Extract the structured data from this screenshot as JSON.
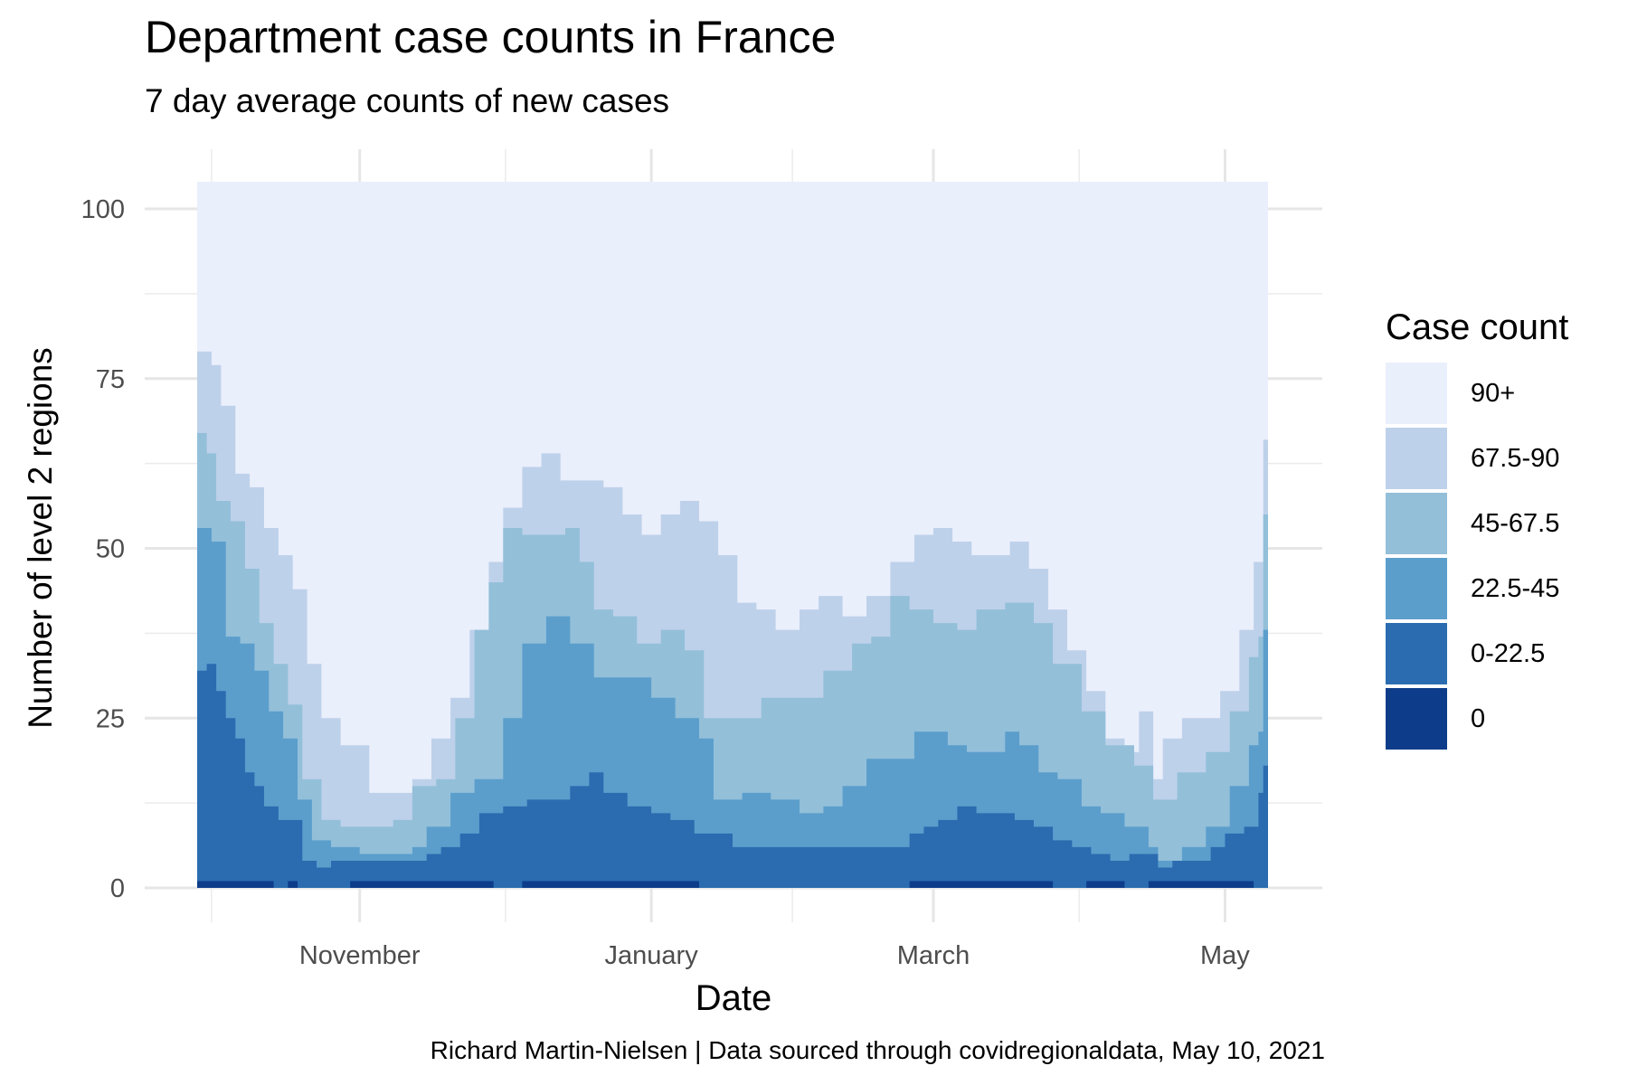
{
  "chart_data": {
    "type": "area",
    "title": "Department case counts in France",
    "subtitle": "7 day average counts of new cases",
    "xlabel": "Date",
    "ylabel": "Number of level 2 regions",
    "caption": "Richard Martin-Nielsen | Data sourced through covidregionaldata, May 10, 2021",
    "x_range": [
      "2020-09-28",
      "2021-05-10"
    ],
    "x_ticks": [
      {
        "date": "2020-11-01",
        "label": "November"
      },
      {
        "date": "2021-01-01",
        "label": "January"
      },
      {
        "date": "2021-03-01",
        "label": "March"
      },
      {
        "date": "2021-05-01",
        "label": "May"
      }
    ],
    "ylim": [
      0,
      104
    ],
    "y_ticks": [
      0,
      25,
      50,
      75,
      100
    ],
    "grid": true,
    "stacked": true,
    "total": 104,
    "legend": {
      "title": "Case count",
      "placement": "right",
      "entries": [
        {
          "label": "90+",
          "color": "#eaeffc"
        },
        {
          "label": "67.5-90",
          "color": "#bed1ea"
        },
        {
          "label": "45-67.5",
          "color": "#93bfd9"
        },
        {
          "label": "22.5-45",
          "color": "#5b9ecc"
        },
        {
          "label": "0-22.5",
          "color": "#2b6cb0"
        },
        {
          "label": "0",
          "color": "#0d3d8a"
        }
      ]
    },
    "cumulative_boundaries": [
      {
        "upper_of": "0",
        "points": [
          [
            "2020-09-28",
            1
          ],
          [
            "2020-10-12",
            1
          ],
          [
            "2020-10-14",
            0
          ],
          [
            "2020-10-17",
            1
          ],
          [
            "2020-10-19",
            0
          ],
          [
            "2020-10-28",
            0
          ],
          [
            "2020-10-30",
            1
          ],
          [
            "2020-11-26",
            1
          ],
          [
            "2020-11-29",
            0
          ],
          [
            "2020-12-05",
            1
          ],
          [
            "2021-01-08",
            1
          ],
          [
            "2021-01-11",
            0
          ],
          [
            "2021-02-22",
            0
          ],
          [
            "2021-02-24",
            1
          ],
          [
            "2021-03-23",
            1
          ],
          [
            "2021-03-26",
            0
          ],
          [
            "2021-04-02",
            1
          ],
          [
            "2021-04-08",
            1
          ],
          [
            "2021-04-10",
            0
          ],
          [
            "2021-04-13",
            0
          ],
          [
            "2021-04-15",
            1
          ],
          [
            "2021-05-05",
            1
          ],
          [
            "2021-05-07",
            0
          ],
          [
            "2021-05-10",
            1
          ]
        ]
      },
      {
        "upper_of": "0-22.5",
        "points": [
          [
            "2020-09-28",
            32
          ],
          [
            "2020-09-30",
            33
          ],
          [
            "2020-10-02",
            29
          ],
          [
            "2020-10-04",
            25
          ],
          [
            "2020-10-06",
            22
          ],
          [
            "2020-10-08",
            17
          ],
          [
            "2020-10-10",
            15
          ],
          [
            "2020-10-12",
            12
          ],
          [
            "2020-10-15",
            10
          ],
          [
            "2020-10-18",
            10
          ],
          [
            "2020-10-20",
            4
          ],
          [
            "2020-10-23",
            3
          ],
          [
            "2020-10-26",
            4
          ],
          [
            "2020-11-03",
            4
          ],
          [
            "2020-11-08",
            4
          ],
          [
            "2020-11-11",
            4
          ],
          [
            "2020-11-15",
            5
          ],
          [
            "2020-11-18",
            6
          ],
          [
            "2020-11-22",
            8
          ],
          [
            "2020-11-26",
            11
          ],
          [
            "2020-12-01",
            12
          ],
          [
            "2020-12-06",
            13
          ],
          [
            "2020-12-10",
            13
          ],
          [
            "2020-12-15",
            15
          ],
          [
            "2020-12-19",
            17
          ],
          [
            "2020-12-22",
            14
          ],
          [
            "2020-12-27",
            12
          ],
          [
            "2021-01-01",
            11
          ],
          [
            "2021-01-05",
            10
          ],
          [
            "2021-01-10",
            8
          ],
          [
            "2021-01-14",
            8
          ],
          [
            "2021-01-18",
            6
          ],
          [
            "2021-01-24",
            6
          ],
          [
            "2021-01-30",
            6
          ],
          [
            "2021-02-05",
            6
          ],
          [
            "2021-02-10",
            6
          ],
          [
            "2021-02-15",
            6
          ],
          [
            "2021-02-20",
            6
          ],
          [
            "2021-02-24",
            8
          ],
          [
            "2021-02-27",
            9
          ],
          [
            "2021-03-02",
            10
          ],
          [
            "2021-03-06",
            12
          ],
          [
            "2021-03-10",
            11
          ],
          [
            "2021-03-14",
            11
          ],
          [
            "2021-03-18",
            10
          ],
          [
            "2021-03-22",
            9
          ],
          [
            "2021-03-26",
            7
          ],
          [
            "2021-03-30",
            6
          ],
          [
            "2021-04-03",
            5
          ],
          [
            "2021-04-07",
            4
          ],
          [
            "2021-04-11",
            5
          ],
          [
            "2021-04-15",
            5
          ],
          [
            "2021-04-17",
            3
          ],
          [
            "2021-04-20",
            4
          ],
          [
            "2021-04-25",
            4
          ],
          [
            "2021-04-28",
            6
          ],
          [
            "2021-05-01",
            8
          ],
          [
            "2021-05-05",
            9
          ],
          [
            "2021-05-08",
            14
          ],
          [
            "2021-05-09",
            18
          ],
          [
            "2021-05-10",
            29
          ]
        ]
      },
      {
        "upper_of": "22.5-45",
        "points": [
          [
            "2020-09-28",
            53
          ],
          [
            "2020-10-01",
            51
          ],
          [
            "2020-10-04",
            37
          ],
          [
            "2020-10-07",
            36
          ],
          [
            "2020-10-10",
            32
          ],
          [
            "2020-10-13",
            26
          ],
          [
            "2020-10-16",
            22
          ],
          [
            "2020-10-19",
            13
          ],
          [
            "2020-10-22",
            7
          ],
          [
            "2020-10-26",
            6
          ],
          [
            "2020-11-01",
            5
          ],
          [
            "2020-11-08",
            5
          ],
          [
            "2020-11-12",
            6
          ],
          [
            "2020-11-15",
            9
          ],
          [
            "2020-11-20",
            14
          ],
          [
            "2020-11-25",
            16
          ],
          [
            "2020-12-01",
            25
          ],
          [
            "2020-12-05",
            36
          ],
          [
            "2020-12-10",
            40
          ],
          [
            "2020-12-15",
            36
          ],
          [
            "2020-12-20",
            31
          ],
          [
            "2020-12-26",
            31
          ],
          [
            "2021-01-01",
            28
          ],
          [
            "2021-01-06",
            25
          ],
          [
            "2021-01-11",
            22
          ],
          [
            "2021-01-14",
            13
          ],
          [
            "2021-01-20",
            14
          ],
          [
            "2021-01-26",
            13
          ],
          [
            "2021-02-01",
            11
          ],
          [
            "2021-02-06",
            12
          ],
          [
            "2021-02-10",
            15
          ],
          [
            "2021-02-15",
            19
          ],
          [
            "2021-02-20",
            19
          ],
          [
            "2021-02-25",
            23
          ],
          [
            "2021-03-01",
            23
          ],
          [
            "2021-03-04",
            21
          ],
          [
            "2021-03-08",
            20
          ],
          [
            "2021-03-12",
            20
          ],
          [
            "2021-03-16",
            23
          ],
          [
            "2021-03-19",
            21
          ],
          [
            "2021-03-23",
            17
          ],
          [
            "2021-03-27",
            16
          ],
          [
            "2021-04-01",
            12
          ],
          [
            "2021-04-05",
            11
          ],
          [
            "2021-04-10",
            9
          ],
          [
            "2021-04-15",
            6
          ],
          [
            "2021-04-17",
            4
          ],
          [
            "2021-04-22",
            6
          ],
          [
            "2021-04-27",
            9
          ],
          [
            "2021-05-02",
            15
          ],
          [
            "2021-05-06",
            21
          ],
          [
            "2021-05-08",
            23
          ],
          [
            "2021-05-09",
            38
          ],
          [
            "2021-05-10",
            55
          ]
        ]
      },
      {
        "upper_of": "45-67.5",
        "points": [
          [
            "2020-09-28",
            67
          ],
          [
            "2020-09-30",
            64
          ],
          [
            "2020-10-02",
            57
          ],
          [
            "2020-10-05",
            54
          ],
          [
            "2020-10-08",
            47
          ],
          [
            "2020-10-11",
            39
          ],
          [
            "2020-10-14",
            33
          ],
          [
            "2020-10-17",
            27
          ],
          [
            "2020-10-20",
            16
          ],
          [
            "2020-10-24",
            10
          ],
          [
            "2020-10-28",
            9
          ],
          [
            "2020-11-03",
            9
          ],
          [
            "2020-11-08",
            10
          ],
          [
            "2020-11-12",
            15
          ],
          [
            "2020-11-17",
            16
          ],
          [
            "2020-11-21",
            25
          ],
          [
            "2020-11-25",
            38
          ],
          [
            "2020-11-28",
            45
          ],
          [
            "2020-12-01",
            53
          ],
          [
            "2020-12-05",
            52
          ],
          [
            "2020-12-10",
            52
          ],
          [
            "2020-12-14",
            53
          ],
          [
            "2020-12-17",
            48
          ],
          [
            "2020-12-20",
            41
          ],
          [
            "2020-12-24",
            40
          ],
          [
            "2020-12-29",
            36
          ],
          [
            "2021-01-03",
            38
          ],
          [
            "2021-01-08",
            35
          ],
          [
            "2021-01-12",
            25
          ],
          [
            "2021-01-18",
            25
          ],
          [
            "2021-01-24",
            28
          ],
          [
            "2021-01-30",
            28
          ],
          [
            "2021-02-06",
            32
          ],
          [
            "2021-02-12",
            36
          ],
          [
            "2021-02-16",
            37
          ],
          [
            "2021-02-20",
            43
          ],
          [
            "2021-02-24",
            41
          ],
          [
            "2021-03-01",
            39
          ],
          [
            "2021-03-06",
            38
          ],
          [
            "2021-03-10",
            41
          ],
          [
            "2021-03-16",
            42
          ],
          [
            "2021-03-22",
            39
          ],
          [
            "2021-03-26",
            33
          ],
          [
            "2021-04-01",
            26
          ],
          [
            "2021-04-06",
            21
          ],
          [
            "2021-04-12",
            18
          ],
          [
            "2021-04-16",
            13
          ],
          [
            "2021-04-21",
            17
          ],
          [
            "2021-04-27",
            20
          ],
          [
            "2021-05-02",
            26
          ],
          [
            "2021-05-06",
            34
          ],
          [
            "2021-05-08",
            37
          ],
          [
            "2021-05-09",
            55
          ],
          [
            "2021-05-10",
            67
          ]
        ]
      },
      {
        "upper_of": "67.5-90",
        "points": [
          [
            "2020-09-28",
            79
          ],
          [
            "2020-10-01",
            77
          ],
          [
            "2020-10-03",
            71
          ],
          [
            "2020-10-06",
            61
          ],
          [
            "2020-10-09",
            59
          ],
          [
            "2020-10-12",
            53
          ],
          [
            "2020-10-15",
            49
          ],
          [
            "2020-10-18",
            44
          ],
          [
            "2020-10-21",
            33
          ],
          [
            "2020-10-24",
            25
          ],
          [
            "2020-10-28",
            21
          ],
          [
            "2020-11-03",
            14
          ],
          [
            "2020-11-08",
            14
          ],
          [
            "2020-11-12",
            16
          ],
          [
            "2020-11-16",
            22
          ],
          [
            "2020-11-20",
            28
          ],
          [
            "2020-11-24",
            38
          ],
          [
            "2020-11-28",
            48
          ],
          [
            "2020-12-01",
            56
          ],
          [
            "2020-12-05",
            62
          ],
          [
            "2020-12-09",
            64
          ],
          [
            "2020-12-13",
            60
          ],
          [
            "2020-12-18",
            60
          ],
          [
            "2020-12-22",
            59
          ],
          [
            "2020-12-26",
            55
          ],
          [
            "2020-12-30",
            52
          ],
          [
            "2021-01-03",
            55
          ],
          [
            "2021-01-07",
            57
          ],
          [
            "2021-01-11",
            54
          ],
          [
            "2021-01-15",
            49
          ],
          [
            "2021-01-19",
            42
          ],
          [
            "2021-01-23",
            41
          ],
          [
            "2021-01-27",
            38
          ],
          [
            "2021-02-01",
            41
          ],
          [
            "2021-02-05",
            43
          ],
          [
            "2021-02-10",
            40
          ],
          [
            "2021-02-15",
            43
          ],
          [
            "2021-02-20",
            48
          ],
          [
            "2021-02-25",
            52
          ],
          [
            "2021-03-01",
            53
          ],
          [
            "2021-03-05",
            51
          ],
          [
            "2021-03-09",
            49
          ],
          [
            "2021-03-13",
            49
          ],
          [
            "2021-03-17",
            51
          ],
          [
            "2021-03-21",
            47
          ],
          [
            "2021-03-25",
            41
          ],
          [
            "2021-03-29",
            35
          ],
          [
            "2021-04-02",
            29
          ],
          [
            "2021-04-06",
            22
          ],
          [
            "2021-04-10",
            20
          ],
          [
            "2021-04-13",
            26
          ],
          [
            "2021-04-16",
            16
          ],
          [
            "2021-04-18",
            22
          ],
          [
            "2021-04-22",
            25
          ],
          [
            "2021-04-26",
            25
          ],
          [
            "2021-04-30",
            29
          ],
          [
            "2021-05-04",
            38
          ],
          [
            "2021-05-07",
            48
          ],
          [
            "2021-05-09",
            66
          ],
          [
            "2021-05-10",
            80
          ]
        ]
      }
    ]
  }
}
